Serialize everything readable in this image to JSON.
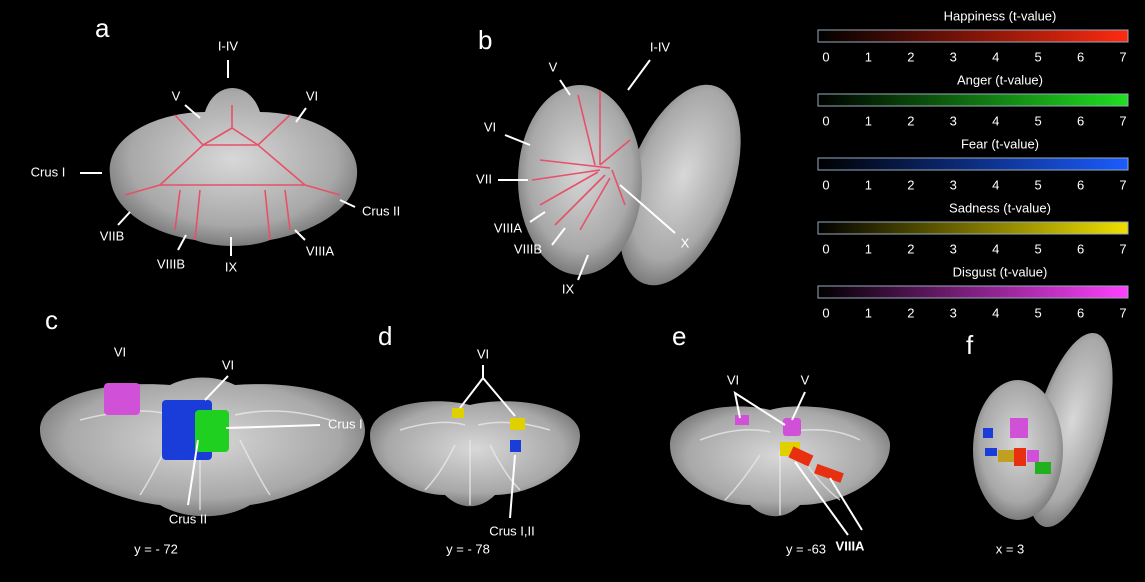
{
  "panels": [
    {
      "letter": "a",
      "labels": [
        "I-IV",
        "V",
        "VI",
        "Crus I",
        "Crus II",
        "VIIB",
        "VIIIB",
        "IX",
        "VIIIA"
      ]
    },
    {
      "letter": "b",
      "labels": [
        "I-IV",
        "V",
        "VI",
        "VII",
        "VIIIA",
        "VIIIB",
        "IX",
        "X"
      ]
    },
    {
      "letter": "c",
      "labels": [
        "VI",
        "VI",
        "Crus I",
        "Crus II"
      ],
      "coordinate": "y = - 72"
    },
    {
      "letter": "d",
      "labels": [
        "VI",
        "Crus I,II"
      ],
      "coordinate": "y = - 78"
    },
    {
      "letter": "e",
      "labels": [
        "VI",
        "V",
        "VIIIA"
      ],
      "coordinate": "y = -63"
    },
    {
      "letter": "f",
      "labels": [],
      "coordinate": "x = 3"
    }
  ],
  "colorbars": [
    {
      "title": "Happiness (t-value)",
      "color": "#ff2a10",
      "ticks": [
        0,
        1,
        2,
        3,
        4,
        5,
        6,
        7
      ]
    },
    {
      "title": "Anger (t-value)",
      "color": "#20e020",
      "ticks": [
        0,
        1,
        2,
        3,
        4,
        5,
        6,
        7
      ]
    },
    {
      "title": "Fear (t-value)",
      "color": "#1a5cff",
      "ticks": [
        0,
        1,
        2,
        3,
        4,
        5,
        6,
        7
      ]
    },
    {
      "title": "Sadness (t-value)",
      "color": "#f0e000",
      "ticks": [
        0,
        1,
        2,
        3,
        4,
        5,
        6,
        7
      ]
    },
    {
      "title": "Disgust (t-value)",
      "color": "#ff40ff",
      "ticks": [
        0,
        1,
        2,
        3,
        4,
        5,
        6,
        7
      ]
    }
  ]
}
